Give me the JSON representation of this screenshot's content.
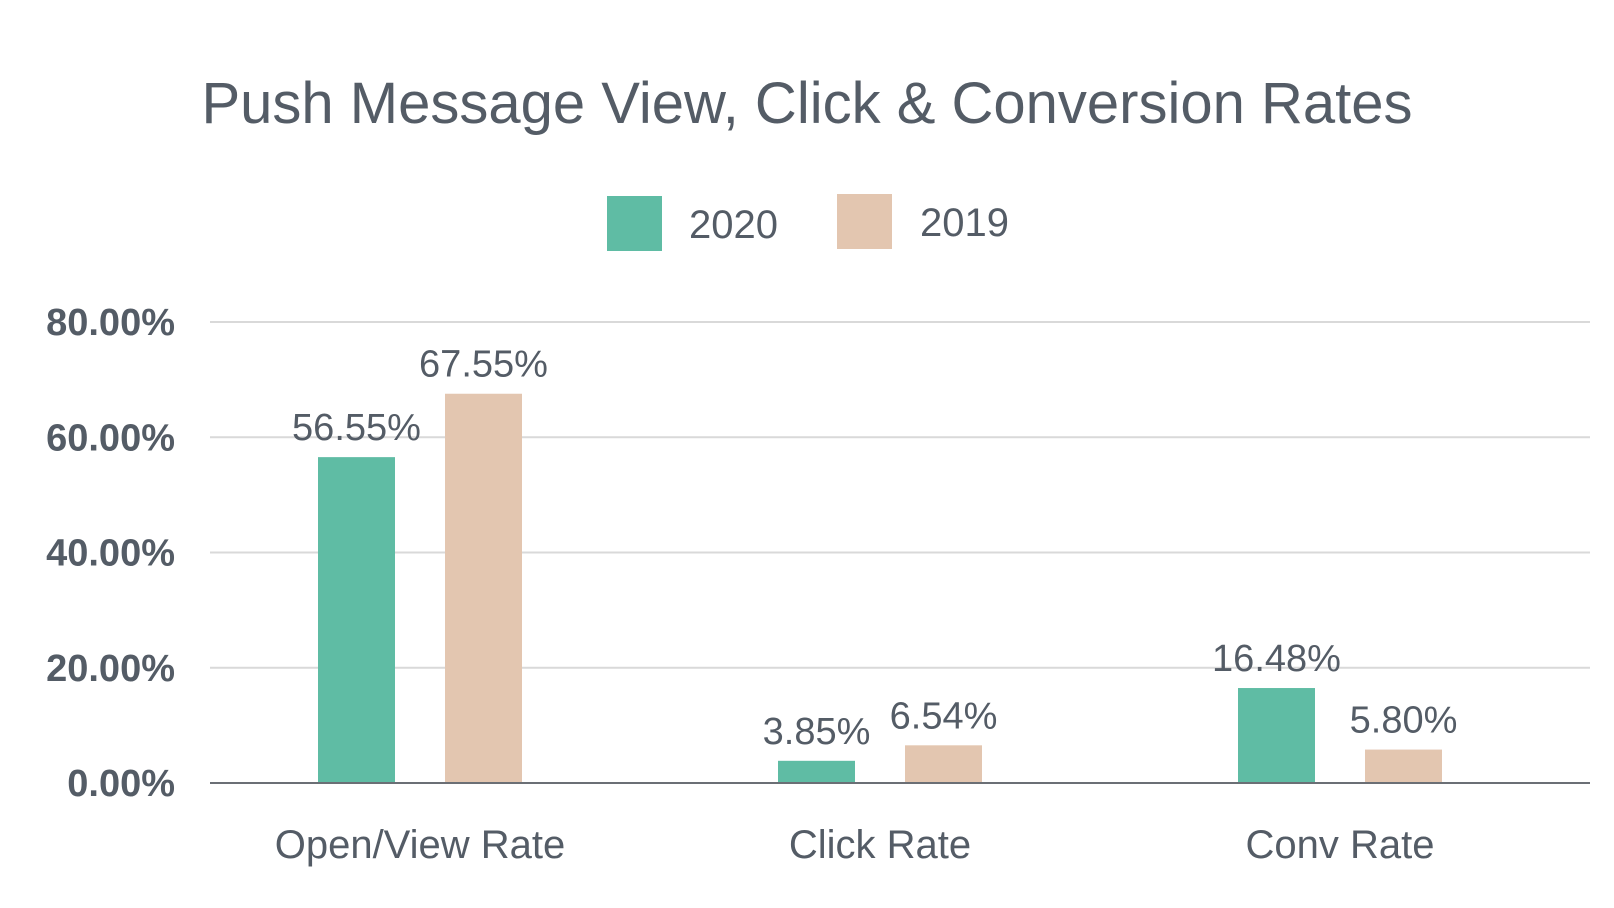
{
  "chart_data": {
    "type": "bar",
    "title": "Push Message View, Click & Conversion Rates",
    "xlabel": "",
    "ylabel": "",
    "categories": [
      "Open/View Rate",
      "Click Rate",
      "Conv Rate"
    ],
    "series": [
      {
        "name": "2020",
        "color": "#5fbca4",
        "values": [
          56.55,
          3.85,
          16.48
        ],
        "labels": [
          "56.55%",
          "3.85%",
          "16.48%"
        ]
      },
      {
        "name": "2019",
        "color": "#e3c6b0",
        "values": [
          67.55,
          6.54,
          5.8
        ],
        "labels": [
          "67.55%",
          "6.54%",
          "5.80%"
        ]
      }
    ],
    "ylim": [
      0,
      80
    ],
    "yticks": [
      0,
      20,
      40,
      60,
      80
    ],
    "ytick_labels": [
      "0.00%",
      "20.00%",
      "40.00%",
      "60.00%",
      "80.00%"
    ],
    "grid": true,
    "legend_position": "top-center"
  }
}
